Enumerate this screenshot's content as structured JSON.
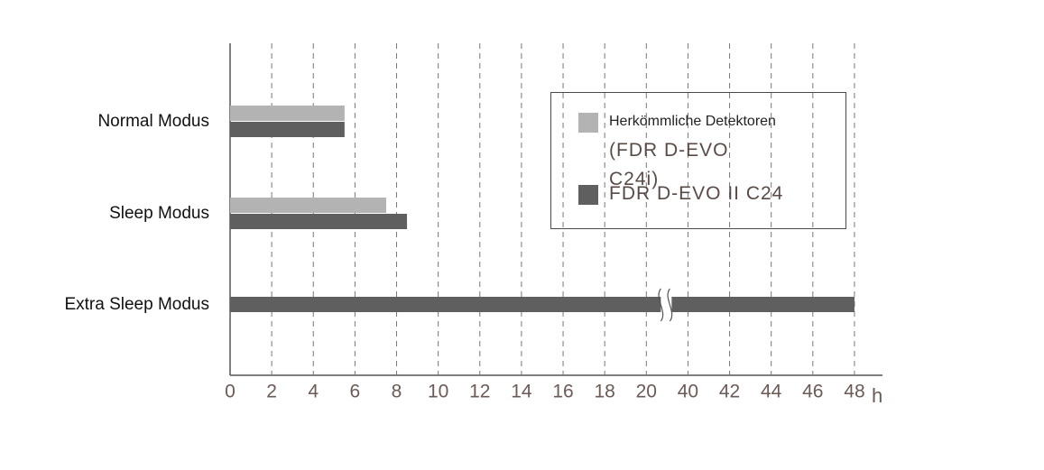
{
  "chart_data": {
    "type": "bar",
    "orientation": "horizontal",
    "categories": [
      "Normal Modus",
      "Sleep Modus",
      "Extra Sleep Modus"
    ],
    "series": [
      {
        "name": "Herkömmliche Detektoren\n(FDR D-EVO C24i)",
        "color": "#b3b3b3",
        "values": [
          5.5,
          7.5,
          null
        ]
      },
      {
        "name": "FDR D-EVO II C24",
        "color": "#5f5f5f",
        "values": [
          5.5,
          8.5,
          48
        ]
      }
    ],
    "x_label": "h",
    "xlim": [
      0,
      48
    ],
    "xticks": [
      0,
      2,
      4,
      6,
      8,
      10,
      12,
      14,
      16,
      18,
      20,
      40,
      42,
      44,
      46,
      48
    ],
    "grid": true
  }
}
